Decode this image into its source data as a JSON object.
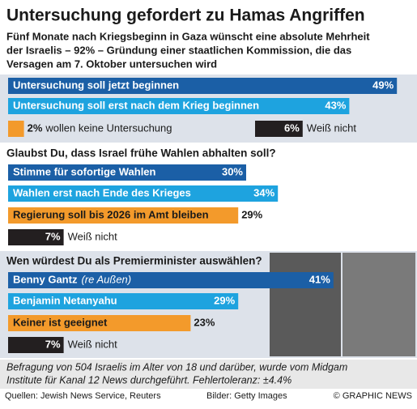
{
  "header": {
    "title": "Untersuchung gefordert zu Hamas Angriffen",
    "subtitle": [
      "Fünf Monate nach Kriegsbeginn in Gaza wünscht eine absolute Mehrheit",
      "der Israelis – 92% – Gründung einer staatlichen Kommission, die das",
      "Versagen am 7. Oktober untersuchen wird"
    ]
  },
  "chart_data": [
    {
      "type": "bar",
      "categories": [
        "Untersuchung soll jetzt beginnen",
        "Untersuchung soll erst nach dem Krieg beginnen",
        "wollen keine Untersuchung",
        "Weiß nicht"
      ],
      "values": [
        49,
        43,
        2,
        6
      ],
      "value_labels": [
        "49%",
        "43%",
        "2%",
        "6%"
      ],
      "colors": [
        "#1b5fa6",
        "#1ea3df",
        "#f39a2b",
        "#231f20"
      ]
    },
    {
      "type": "bar",
      "title": "Glaubst Du, dass Israel frühe Wahlen abhalten soll?",
      "categories": [
        "Stimme für sofortige Wahlen",
        "Wahlen erst nach Ende des Krieges",
        "Regierung soll bis 2026 im Amt bleiben",
        "Weiß nicht"
      ],
      "values": [
        30,
        34,
        29,
        7
      ],
      "value_labels": [
        "30%",
        "34%",
        "29%",
        "7%"
      ],
      "colors": [
        "#1b5fa6",
        "#1ea3df",
        "#f39a2b",
        "#231f20"
      ]
    },
    {
      "type": "bar",
      "title": "Wen würdest Du als Premierminister auswählen?",
      "categories": [
        "Benny Gantz",
        "Benjamin Netanyahu",
        "Keiner ist geeignet",
        "Weiß nicht"
      ],
      "category_notes": [
        "(re Außen)",
        null,
        null,
        null
      ],
      "values": [
        41,
        29,
        23,
        7
      ],
      "value_labels": [
        "41%",
        "29%",
        "23%",
        "7%"
      ],
      "colors": [
        "#1b5fa6",
        "#1ea3df",
        "#f39a2b",
        "#231f20"
      ]
    }
  ],
  "note": [
    "Befragung von 504 Israelis im Alter von 18 und darüber, wurde vom Midgam",
    "Institute für Kanal 12 News durchgeführt. Fehlertoleranz: ±4.4%"
  ],
  "sources": {
    "left": "Quellen: Jewish News Service, Reuters",
    "middle": "Bilder: Getty Images",
    "right": "© GRAPHIC NEWS"
  }
}
